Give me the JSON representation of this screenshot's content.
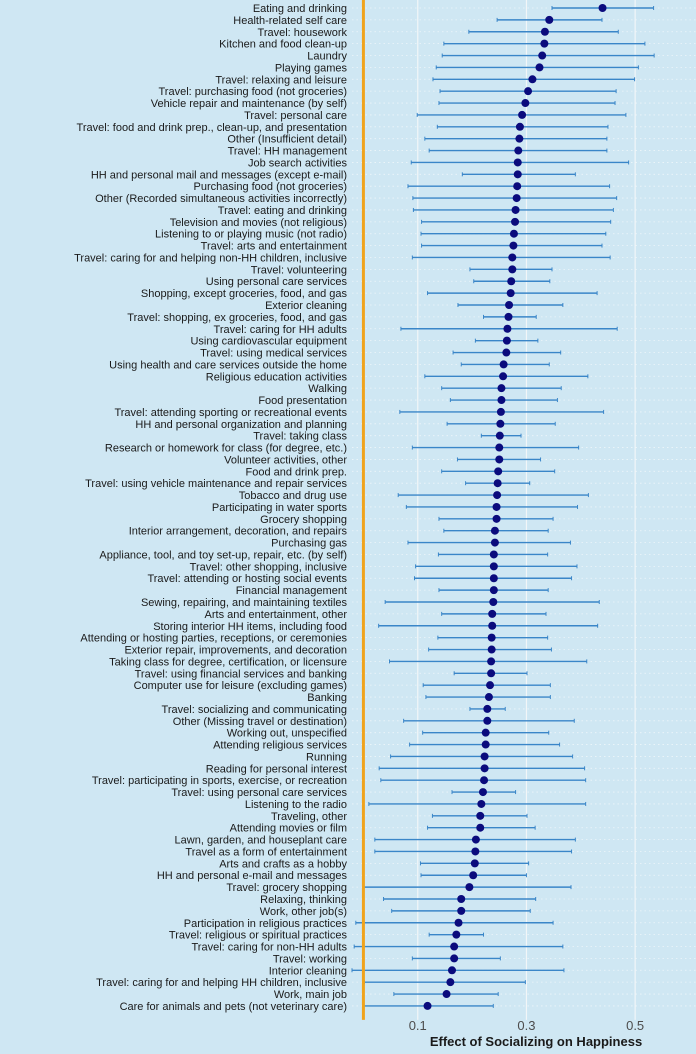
{
  "chart_data": {
    "type": "scatter",
    "subtype": "forest-plot-with-confidence-intervals",
    "xlabel": "Effect of Socializing on Happiness",
    "xlim": [
      -0.021,
      0.612
    ],
    "xticks": [
      0.1,
      0.3,
      0.5
    ],
    "xtick_labels": [
      "0.1",
      "0.3",
      "0.5"
    ],
    "reference_line": 0,
    "grid": true,
    "colors": {
      "background": "#cfe7f3",
      "point": "#0b0b7d",
      "interval": "#3a86c8",
      "reference_line": "#f0a31c",
      "grid": "#f2f6f8"
    },
    "rows": [
      {
        "label": "Eating and drinking",
        "estimate": 0.44,
        "lower": 0.347,
        "upper": 0.534
      },
      {
        "label": "Health-related self care",
        "estimate": 0.342,
        "lower": 0.246,
        "upper": 0.439
      },
      {
        "label": "Travel: housework",
        "estimate": 0.334,
        "lower": 0.194,
        "upper": 0.469
      },
      {
        "label": "Kitchen and food clean-up",
        "estimate": 0.333,
        "lower": 0.148,
        "upper": 0.518
      },
      {
        "label": "Laundry",
        "estimate": 0.329,
        "lower": 0.145,
        "upper": 0.535
      },
      {
        "label": "Playing games",
        "estimate": 0.324,
        "lower": 0.134,
        "upper": 0.506
      },
      {
        "label": "Travel: relaxing and leisure",
        "estimate": 0.311,
        "lower": 0.128,
        "upper": 0.499
      },
      {
        "label": "Travel: purchasing food (not groceries)",
        "estimate": 0.303,
        "lower": 0.141,
        "upper": 0.465
      },
      {
        "label": "Vehicle repair and maintenance (by self)",
        "estimate": 0.298,
        "lower": 0.139,
        "upper": 0.463
      },
      {
        "label": "Travel: personal care",
        "estimate": 0.292,
        "lower": 0.099,
        "upper": 0.483
      },
      {
        "label": "Travel: food and drink prep., clean-up, and presentation",
        "estimate": 0.288,
        "lower": 0.136,
        "upper": 0.45
      },
      {
        "label": "Other (Insufficient detail)",
        "estimate": 0.287,
        "lower": 0.113,
        "upper": 0.448
      },
      {
        "label": "Travel: HH management",
        "estimate": 0.285,
        "lower": 0.121,
        "upper": 0.448
      },
      {
        "label": "Job search activities",
        "estimate": 0.284,
        "lower": 0.088,
        "upper": 0.488
      },
      {
        "label": "HH and personal mail and messages (except e-mail)",
        "estimate": 0.284,
        "lower": 0.182,
        "upper": 0.39
      },
      {
        "label": "Purchasing food (not groceries)",
        "estimate": 0.283,
        "lower": 0.082,
        "upper": 0.453
      },
      {
        "label": "Other (Recorded simultaneous activities incorrectly)",
        "estimate": 0.282,
        "lower": 0.091,
        "upper": 0.466
      },
      {
        "label": "Travel: eating and drinking",
        "estimate": 0.28,
        "lower": 0.092,
        "upper": 0.46
      },
      {
        "label": "Television and movies (not religious)",
        "estimate": 0.279,
        "lower": 0.107,
        "upper": 0.455
      },
      {
        "label": "Listening to or playing music (not radio)",
        "estimate": 0.277,
        "lower": 0.106,
        "upper": 0.446
      },
      {
        "label": "Travel: arts and entertainment",
        "estimate": 0.276,
        "lower": 0.107,
        "upper": 0.439
      },
      {
        "label": "Travel: caring for and helping non-HH children, inclusive",
        "estimate": 0.274,
        "lower": 0.09,
        "upper": 0.454
      },
      {
        "label": "Travel: volunteering",
        "estimate": 0.274,
        "lower": 0.196,
        "upper": 0.347
      },
      {
        "label": "Using personal care services",
        "estimate": 0.272,
        "lower": 0.203,
        "upper": 0.343
      },
      {
        "label": "Shopping, except groceries, food, and gas",
        "estimate": 0.271,
        "lower": 0.118,
        "upper": 0.43
      },
      {
        "label": "Exterior cleaning",
        "estimate": 0.268,
        "lower": 0.174,
        "upper": 0.367
      },
      {
        "label": "Travel: shopping, ex groceries, food, and gas",
        "estimate": 0.267,
        "lower": 0.221,
        "upper": 0.318
      },
      {
        "label": "Travel: caring for HH adults",
        "estimate": 0.265,
        "lower": 0.069,
        "upper": 0.467
      },
      {
        "label": "Using cardiovascular equipment",
        "estimate": 0.264,
        "lower": 0.206,
        "upper": 0.321
      },
      {
        "label": "Travel: using medical services",
        "estimate": 0.263,
        "lower": 0.165,
        "upper": 0.363
      },
      {
        "label": "Using health and care services outside the home",
        "estimate": 0.258,
        "lower": 0.18,
        "upper": 0.342
      },
      {
        "label": "Religious education activities",
        "estimate": 0.257,
        "lower": 0.113,
        "upper": 0.413
      },
      {
        "label": "Walking",
        "estimate": 0.254,
        "lower": 0.144,
        "upper": 0.364
      },
      {
        "label": "Food presentation",
        "estimate": 0.254,
        "lower": 0.16,
        "upper": 0.357
      },
      {
        "label": "Travel: attending sporting or recreational events",
        "estimate": 0.253,
        "lower": 0.067,
        "upper": 0.442
      },
      {
        "label": "HH and personal organization and planning",
        "estimate": 0.252,
        "lower": 0.154,
        "upper": 0.353
      },
      {
        "label": "Travel: taking class",
        "estimate": 0.251,
        "lower": 0.217,
        "upper": 0.29
      },
      {
        "label": "Research or homework for class (for degree, etc.)",
        "estimate": 0.25,
        "lower": 0.09,
        "upper": 0.396
      },
      {
        "label": "Volunteer activities, other",
        "estimate": 0.25,
        "lower": 0.173,
        "upper": 0.326
      },
      {
        "label": "Food and drink prep.",
        "estimate": 0.248,
        "lower": 0.144,
        "upper": 0.352
      },
      {
        "label": "Travel: using vehicle maintenance and repair services",
        "estimate": 0.247,
        "lower": 0.188,
        "upper": 0.306
      },
      {
        "label": "Tobacco and drug use",
        "estimate": 0.246,
        "lower": 0.064,
        "upper": 0.414
      },
      {
        "label": "Participating in water sports",
        "estimate": 0.245,
        "lower": 0.079,
        "upper": 0.394
      },
      {
        "label": "Grocery shopping",
        "estimate": 0.245,
        "lower": 0.139,
        "upper": 0.349
      },
      {
        "label": "Interior arrangement, decoration, and repairs",
        "estimate": 0.242,
        "lower": 0.148,
        "upper": 0.34
      },
      {
        "label": "Purchasing gas",
        "estimate": 0.242,
        "lower": 0.082,
        "upper": 0.381
      },
      {
        "label": "Appliance, tool, and toy set-up, repair, etc. (by self)",
        "estimate": 0.24,
        "lower": 0.138,
        "upper": 0.339
      },
      {
        "label": "Travel: other shopping, inclusive",
        "estimate": 0.24,
        "lower": 0.096,
        "upper": 0.393
      },
      {
        "label": "Travel: attending or hosting social events",
        "estimate": 0.24,
        "lower": 0.094,
        "upper": 0.383
      },
      {
        "label": "Financial management",
        "estimate": 0.24,
        "lower": 0.139,
        "upper": 0.34
      },
      {
        "label": "Sewing, repairing, and maintaining textiles",
        "estimate": 0.239,
        "lower": 0.04,
        "upper": 0.434
      },
      {
        "label": "Arts and entertainment, other",
        "estimate": 0.237,
        "lower": 0.144,
        "upper": 0.336
      },
      {
        "label": "Storing interior HH items, including food",
        "estimate": 0.237,
        "lower": 0.028,
        "upper": 0.431
      },
      {
        "label": "Attending or hosting parties, receptions, or ceremonies",
        "estimate": 0.236,
        "lower": 0.137,
        "upper": 0.339
      },
      {
        "label": "Exterior repair, improvements, and decoration",
        "estimate": 0.236,
        "lower": 0.12,
        "upper": 0.346
      },
      {
        "label": "Taking class for degree, certification, or licensure",
        "estimate": 0.235,
        "lower": 0.048,
        "upper": 0.411
      },
      {
        "label": "Travel: using financial services and banking",
        "estimate": 0.235,
        "lower": 0.167,
        "upper": 0.301
      },
      {
        "label": "Computer use for leisure (excluding games)",
        "estimate": 0.233,
        "lower": 0.11,
        "upper": 0.344
      },
      {
        "label": "Banking",
        "estimate": 0.231,
        "lower": 0.115,
        "upper": 0.344
      },
      {
        "label": "Travel: socializing and communicating",
        "estimate": 0.228,
        "lower": 0.196,
        "upper": 0.261
      },
      {
        "label": "Other (Missing travel or destination)",
        "estimate": 0.228,
        "lower": 0.074,
        "upper": 0.388
      },
      {
        "label": "Working out, unspecified",
        "estimate": 0.225,
        "lower": 0.109,
        "upper": 0.341
      },
      {
        "label": "Attending religious services",
        "estimate": 0.225,
        "lower": 0.085,
        "upper": 0.361
      },
      {
        "label": "Running",
        "estimate": 0.223,
        "lower": 0.05,
        "upper": 0.385
      },
      {
        "label": "Reading for personal interest",
        "estimate": 0.223,
        "lower": 0.029,
        "upper": 0.407
      },
      {
        "label": "Travel: participating in sports, exercise, or recreation",
        "estimate": 0.222,
        "lower": 0.032,
        "upper": 0.409
      },
      {
        "label": "Travel: using personal care services",
        "estimate": 0.22,
        "lower": 0.163,
        "upper": 0.28
      },
      {
        "label": "Listening to the radio",
        "estimate": 0.217,
        "lower": 0.01,
        "upper": 0.409
      },
      {
        "label": "Traveling, other",
        "estimate": 0.215,
        "lower": 0.127,
        "upper": 0.301
      },
      {
        "label": "Attending movies or film",
        "estimate": 0.215,
        "lower": 0.118,
        "upper": 0.316
      },
      {
        "label": "Lawn, garden, and houseplant care",
        "estimate": 0.207,
        "lower": 0.021,
        "upper": 0.39
      },
      {
        "label": "Travel as a form of entertainment",
        "estimate": 0.206,
        "lower": 0.021,
        "upper": 0.383
      },
      {
        "label": "Arts and crafts as a hobby",
        "estimate": 0.205,
        "lower": 0.105,
        "upper": 0.304
      },
      {
        "label": "HH and personal e-mail and messages",
        "estimate": 0.202,
        "lower": 0.106,
        "upper": 0.3
      },
      {
        "label": "Travel: grocery shopping",
        "estimate": 0.195,
        "lower": 0.0,
        "upper": 0.382
      },
      {
        "label": "Relaxing, thinking",
        "estimate": 0.18,
        "lower": 0.037,
        "upper": 0.317
      },
      {
        "label": "Work, other job(s)",
        "estimate": 0.18,
        "lower": 0.052,
        "upper": 0.307
      },
      {
        "label": "Participation in religious practices",
        "estimate": 0.175,
        "lower": -0.014,
        "upper": 0.349
      },
      {
        "label": "Travel: religious or spiritual practices",
        "estimate": 0.171,
        "lower": 0.121,
        "upper": 0.221
      },
      {
        "label": "Travel: caring for non-HH adults",
        "estimate": 0.167,
        "lower": -0.017,
        "upper": 0.367
      },
      {
        "label": "Travel: working",
        "estimate": 0.167,
        "lower": 0.09,
        "upper": 0.252
      },
      {
        "label": "Interior cleaning",
        "estimate": 0.163,
        "lower": -0.021,
        "upper": 0.369
      },
      {
        "label": "Travel: caring for and helping HH children, inclusive",
        "estimate": 0.16,
        "lower": 0.002,
        "upper": 0.298
      },
      {
        "label": "Work, main job",
        "estimate": 0.153,
        "lower": 0.056,
        "upper": 0.248
      },
      {
        "label": "Care for animals and pets (not veterinary care)",
        "estimate": 0.118,
        "lower": 0.001,
        "upper": 0.239
      }
    ]
  }
}
